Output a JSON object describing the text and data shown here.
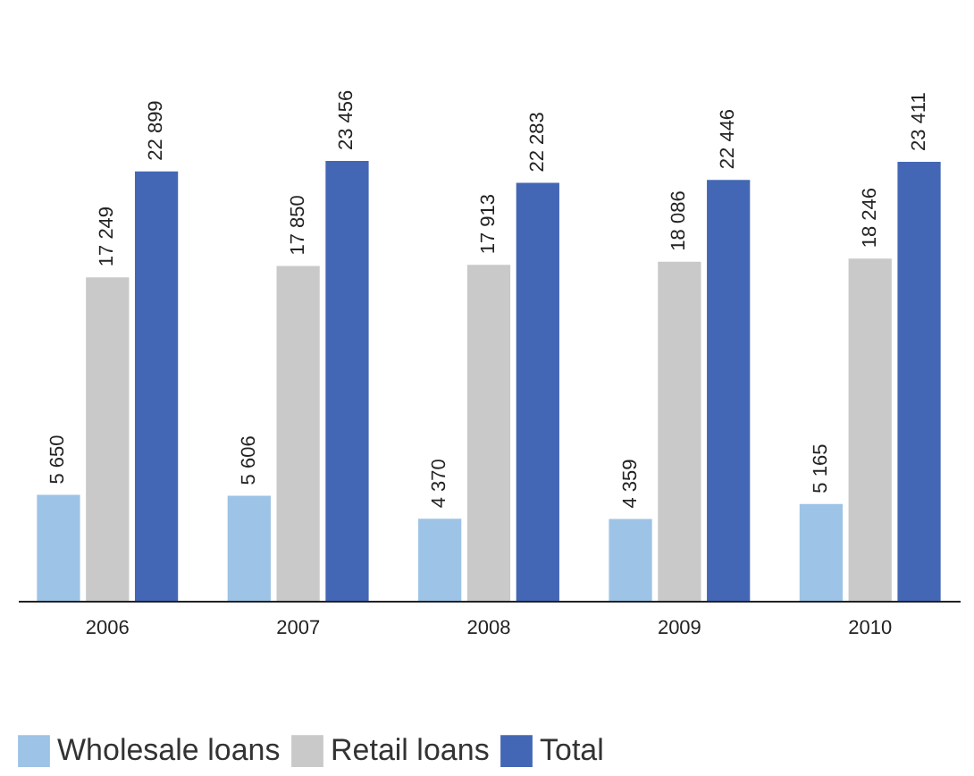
{
  "chart_data": {
    "type": "bar",
    "categories": [
      "2006",
      "2007",
      "2008",
      "2009",
      "2010"
    ],
    "series": [
      {
        "name": "Wholesale loans",
        "color": "#9dc3e6",
        "values": [
          5650,
          5606,
          4370,
          4359,
          5165
        ],
        "value_labels": [
          "5 650",
          "5 606",
          "4 370",
          "4 359",
          "5 165"
        ]
      },
      {
        "name": "Retail loans",
        "color": "#c9c9c9",
        "values": [
          17249,
          17850,
          17913,
          18086,
          18246
        ],
        "value_labels": [
          "17 249",
          "17 850",
          "17 913",
          "18 086",
          "18 246"
        ]
      },
      {
        "name": "Total",
        "color": "#4467b5",
        "values": [
          22899,
          23456,
          22283,
          22446,
          23411
        ],
        "value_labels": [
          "22 899",
          "23 456",
          "22 283",
          "22 446",
          "23 411"
        ]
      }
    ],
    "legend": "bottom",
    "grid": false
  }
}
